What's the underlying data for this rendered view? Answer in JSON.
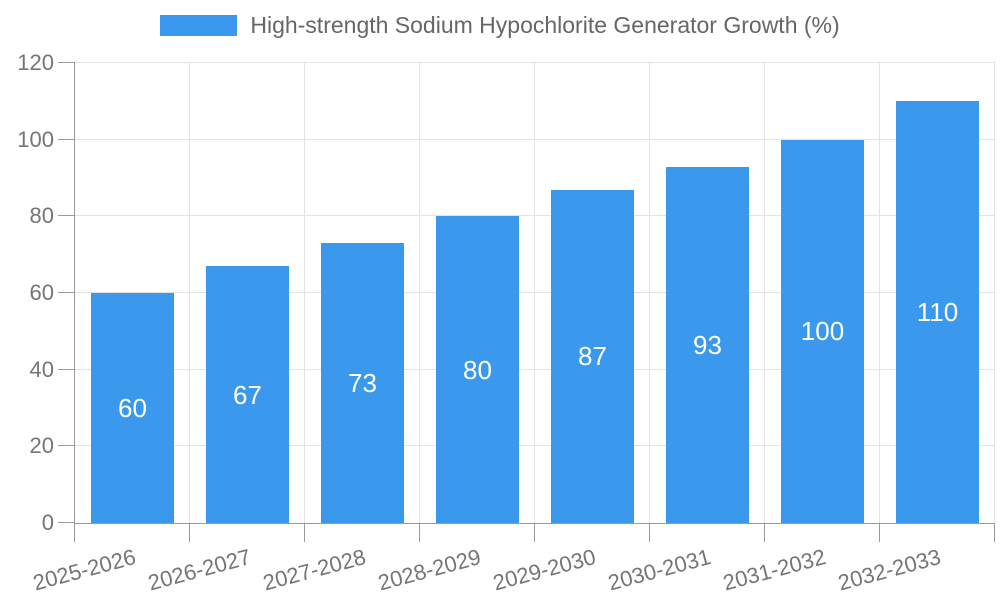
{
  "legend": {
    "label": "High-strength Sodium Hypochlorite Generator Growth (%)",
    "swatch_color": "#3a99ec"
  },
  "chart_data": {
    "type": "bar",
    "title": "High-strength Sodium Hypochlorite Generator Growth (%)",
    "categories": [
      "2025-2026",
      "2026-2027",
      "2027-2028",
      "2028-2029",
      "2029-2030",
      "2030-2031",
      "2031-2032",
      "2032-2033"
    ],
    "values": [
      60,
      67,
      73,
      80,
      87,
      93,
      100,
      110
    ],
    "xlabel": "",
    "ylabel": "",
    "ylim": [
      0,
      120
    ],
    "yticks": [
      0,
      20,
      40,
      60,
      80,
      100,
      120
    ],
    "grid": true,
    "legend_position": "top",
    "bar_color": "#3a99ec",
    "value_label_color": "#ffffff",
    "grid_color": "#e3e3e3",
    "axis_color": "#9a9a9a",
    "tick_label_color": "#757575",
    "title_color": "#666666"
  }
}
